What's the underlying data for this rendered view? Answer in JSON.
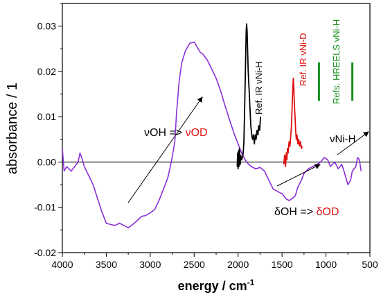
{
  "chart_data": {
    "type": "line",
    "xlabel_main": "energy / cm",
    "xlabel_sup": "-1",
    "ylabel": "absorbance / 1",
    "xlim": [
      4000,
      500
    ],
    "ylim": [
      -0.02,
      0.035
    ],
    "x_ticks": [
      4000,
      3500,
      3000,
      2500,
      2000,
      1500,
      1000,
      500
    ],
    "x_tick_labels": [
      "4000",
      "3500",
      "3000",
      "2500",
      "2000",
      "1500",
      "1000",
      "500"
    ],
    "y_ticks": [
      -0.02,
      -0.01,
      0.0,
      0.01,
      0.02,
      0.03
    ],
    "y_tick_labels": [
      "-0.02",
      "-0.01",
      "0.00",
      "0.01",
      "0.02",
      "0.03"
    ],
    "zero_line": true,
    "series": [
      {
        "color": "#8b2fd6",
        "points": [
          [
            4000,
            0.003
          ],
          [
            3980,
            -0.002
          ],
          [
            3950,
            -0.001
          ],
          [
            3900,
            -0.002
          ],
          [
            3860,
            -0.001
          ],
          [
            3820,
            0.0
          ],
          [
            3800,
            0.002
          ],
          [
            3780,
            0.001
          ],
          [
            3750,
            -0.001
          ],
          [
            3700,
            -0.003
          ],
          [
            3650,
            -0.005
          ],
          [
            3600,
            -0.008
          ],
          [
            3550,
            -0.011
          ],
          [
            3500,
            -0.0135
          ],
          [
            3450,
            -0.0138
          ],
          [
            3400,
            -0.014
          ],
          [
            3350,
            -0.0135
          ],
          [
            3300,
            -0.014
          ],
          [
            3250,
            -0.0145
          ],
          [
            3200,
            -0.0138
          ],
          [
            3150,
            -0.013
          ],
          [
            3100,
            -0.012
          ],
          [
            3050,
            -0.0118
          ],
          [
            3000,
            -0.0112
          ],
          [
            2950,
            -0.0105
          ],
          [
            2900,
            -0.0085
          ],
          [
            2850,
            -0.006
          ],
          [
            2800,
            -0.0035
          ],
          [
            2760,
            0.0
          ],
          [
            2720,
            0.0045
          ],
          [
            2700,
            0.011
          ],
          [
            2670,
            0.018
          ],
          [
            2640,
            0.022
          ],
          [
            2600,
            0.0245
          ],
          [
            2550,
            0.0262
          ],
          [
            2500,
            0.0265
          ],
          [
            2470,
            0.0255
          ],
          [
            2430,
            0.0242
          ],
          [
            2400,
            0.0238
          ],
          [
            2350,
            0.0225
          ],
          [
            2300,
            0.0205
          ],
          [
            2250,
            0.0185
          ],
          [
            2200,
            0.0158
          ],
          [
            2150,
            0.0125
          ],
          [
            2100,
            0.0095
          ],
          [
            2050,
            0.0065
          ],
          [
            2000,
            0.004
          ],
          [
            1960,
            0.002
          ],
          [
            1920,
            0.0005
          ],
          [
            1880,
            -0.0005
          ],
          [
            1850,
            -0.001
          ],
          [
            1800,
            -0.0015
          ],
          [
            1750,
            -0.0012
          ],
          [
            1700,
            -0.002
          ],
          [
            1650,
            -0.004
          ],
          [
            1600,
            -0.006
          ],
          [
            1550,
            -0.0065
          ],
          [
            1500,
            -0.007
          ],
          [
            1450,
            -0.0082
          ],
          [
            1420,
            -0.0085
          ],
          [
            1380,
            -0.008
          ],
          [
            1350,
            -0.0075
          ],
          [
            1320,
            -0.0055
          ],
          [
            1280,
            -0.004
          ],
          [
            1250,
            -0.0025
          ],
          [
            1200,
            -0.0015
          ],
          [
            1150,
            -0.001
          ],
          [
            1100,
            -0.0005
          ],
          [
            1060,
            0.0
          ],
          [
            1020,
            0.001
          ],
          [
            980,
            0.0005
          ],
          [
            950,
            -0.001
          ],
          [
            900,
            0.0
          ],
          [
            860,
            -0.0015
          ],
          [
            820,
            -0.0005
          ],
          [
            780,
            -0.003
          ],
          [
            750,
            -0.005
          ],
          [
            720,
            -0.004
          ],
          [
            700,
            -0.002
          ],
          [
            680,
            -0.0015
          ],
          [
            660,
            -0.001
          ],
          [
            640,
            0.001
          ],
          [
            620,
            0.0005
          ],
          [
            600,
            -0.002
          ]
        ]
      },
      {
        "color": "#000000",
        "points": [
          [
            2010,
            -0.001
          ],
          [
            2005,
            0.002
          ],
          [
            2000,
            -0.0015
          ],
          [
            1995,
            0.0025
          ],
          [
            1990,
            -0.001
          ],
          [
            1985,
            0.003
          ],
          [
            1980,
            0.0005
          ],
          [
            1975,
            -0.0005
          ],
          [
            1970,
            0.0015
          ],
          [
            1960,
            0.0005
          ],
          [
            1945,
            0.0015
          ],
          [
            1935,
            0.004
          ],
          [
            1925,
            0.012
          ],
          [
            1915,
            0.022
          ],
          [
            1908,
            0.029
          ],
          [
            1903,
            0.0305
          ],
          [
            1898,
            0.029
          ],
          [
            1892,
            0.025
          ],
          [
            1885,
            0.02
          ],
          [
            1875,
            0.016
          ],
          [
            1865,
            0.012
          ],
          [
            1855,
            0.008
          ],
          [
            1845,
            0.006
          ],
          [
            1835,
            0.005
          ],
          [
            1825,
            0.006
          ],
          [
            1815,
            0.004
          ],
          [
            1805,
            0.006
          ],
          [
            1795,
            0.005
          ],
          [
            1785,
            0.007
          ],
          [
            1775,
            0.006
          ],
          [
            1765,
            0.008
          ],
          [
            1755,
            0.007
          ],
          [
            1745,
            0.01
          ]
        ]
      },
      {
        "color": "#e01010",
        "points": [
          [
            1480,
            -0.0005
          ],
          [
            1470,
            0.0015
          ],
          [
            1460,
            -0.001
          ],
          [
            1452,
            0.002
          ],
          [
            1445,
            0.0005
          ],
          [
            1438,
            0.003
          ],
          [
            1430,
            0.002
          ],
          [
            1420,
            0.0045
          ],
          [
            1410,
            0.0035
          ],
          [
            1400,
            0.006
          ],
          [
            1392,
            0.008
          ],
          [
            1385,
            0.012
          ],
          [
            1378,
            0.016
          ],
          [
            1372,
            0.0185
          ],
          [
            1367,
            0.017
          ],
          [
            1360,
            0.013
          ],
          [
            1352,
            0.01
          ],
          [
            1345,
            0.007
          ],
          [
            1338,
            0.005
          ],
          [
            1330,
            0.006
          ],
          [
            1320,
            0.004
          ],
          [
            1310,
            0.005
          ],
          [
            1300,
            0.0035
          ],
          [
            1290,
            0.0045
          ],
          [
            1280,
            0.003
          ],
          [
            1270,
            0.0035
          ]
        ]
      }
    ],
    "ref_bars": {
      "color": "#18901f",
      "x": [
        1080,
        700
      ],
      "y_range": [
        0.0135,
        0.022
      ]
    },
    "annotations": {
      "ref_ir_nih": "Ref. IR νNi-H",
      "ref_ir_nid": "Ref. IR νNi-D",
      "refs_hreels": "Refs. HREELS νNi-H",
      "voh_prefix": "νOH => ",
      "vod": "νOD",
      "doh_prefix": "δOH => ",
      "dod": "δOD",
      "vnih": "νNi-H"
    },
    "colors": {
      "black_text": "#000000",
      "red_text": "#e01010",
      "green_text": "#18901f"
    }
  }
}
